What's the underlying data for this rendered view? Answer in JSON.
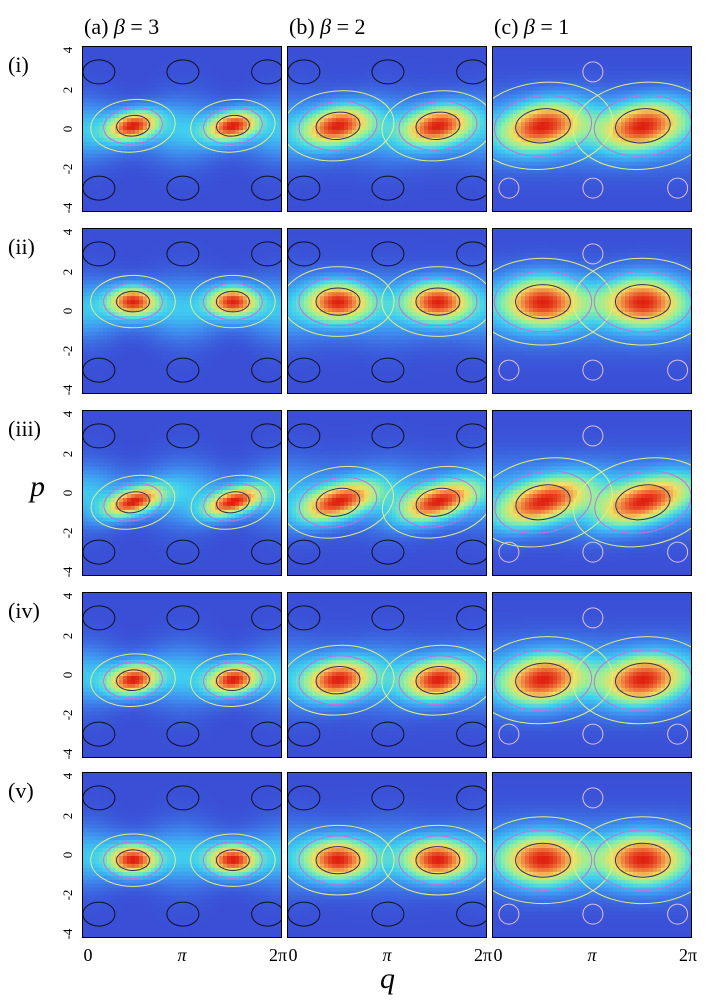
{
  "chart_data": {
    "type": "heatmap",
    "description_axes": {
      "xlabel": "q",
      "ylabel": "p",
      "xlim": [
        0,
        6.2832
      ],
      "ylim": [
        -4,
        4
      ],
      "x_tick_labels": [
        "0",
        "π",
        "2π"
      ],
      "y_tick_labels": [
        "4",
        "2",
        "0",
        "-2",
        "-4"
      ]
    },
    "columns": [
      {
        "label": "(a) ",
        "beta_symbol": "β",
        "beta_value": " = 3",
        "beta": 3
      },
      {
        "label": "(b) ",
        "beta_symbol": "β",
        "beta_value": " = 2",
        "beta": 2
      },
      {
        "label": "(c) ",
        "beta_symbol": "β",
        "beta_value": " = 1",
        "beta": 1
      }
    ],
    "rows": [
      {
        "label": "(i)",
        "peak_p": 0.2,
        "tilt": 0.3,
        "band_p": 0.0
      },
      {
        "label": "(ii)",
        "peak_p": 0.5,
        "tilt": 0.0,
        "band_p": 0.5
      },
      {
        "label": "(iii)",
        "peak_p": -0.4,
        "tilt": 0.6,
        "band_p": 0.0
      },
      {
        "label": "(iv)",
        "peak_p": -0.2,
        "tilt": 0.2,
        "band_p": 0.0
      },
      {
        "label": "(v)",
        "peak_p": -0.2,
        "tilt": 0.0,
        "band_p": 0.0
      }
    ],
    "peak_q_positions": [
      1.57,
      4.71
    ],
    "colormap": [
      "#3a4fd6",
      "#3f8ff0",
      "#3fd0f0",
      "#8ff0a0",
      "#f0e060",
      "#f08040",
      "#e02010"
    ],
    "contour_colors": {
      "outer": "#e0f080",
      "middle": "#c070e0",
      "inner": "#303060",
      "negative": "#101020",
      "beta1_negative": "#e0c0e0"
    }
  }
}
